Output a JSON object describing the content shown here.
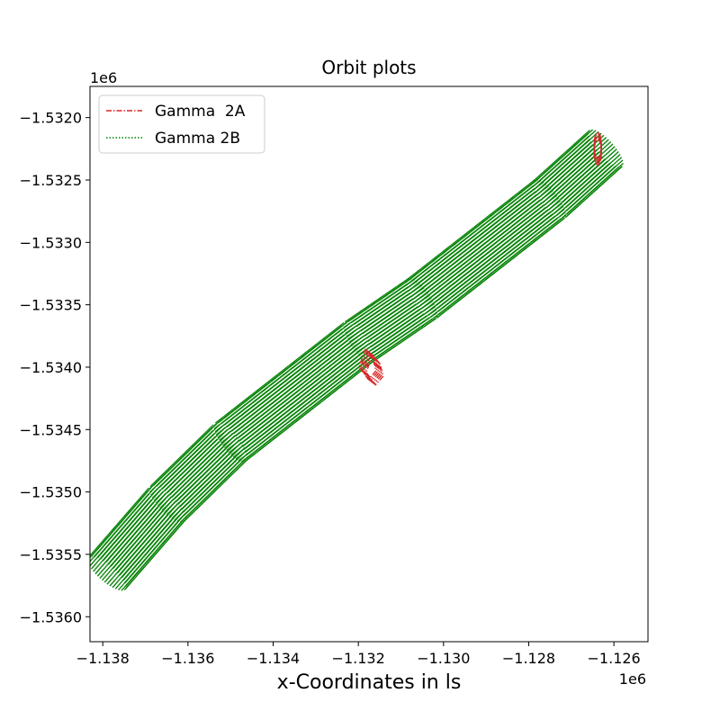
{
  "chart_data": {
    "type": "line",
    "title": "Orbit plots",
    "xlabel": "x-Coordinates in ls",
    "ylabel": "",
    "x_offset_label": "1e6",
    "y_offset_label": "1e6",
    "xlim": [
      -1.1383,
      -1.1252
    ],
    "ylim": [
      -1.5362,
      -1.53175
    ],
    "xticks": [
      -1.138,
      -1.136,
      -1.134,
      -1.132,
      -1.13,
      -1.128,
      -1.126
    ],
    "xtick_labels": [
      "−1.138",
      "−1.136",
      "−1.134",
      "−1.132",
      "−1.130",
      "−1.128",
      "−1.126"
    ],
    "yticks": [
      -1.532,
      -1.5325,
      -1.533,
      -1.5335,
      -1.534,
      -1.5345,
      -1.535,
      -1.5355,
      -1.536
    ],
    "ytick_labels": [
      "−1.5320",
      "−1.5325",
      "−1.5330",
      "−1.5335",
      "−1.5340",
      "−1.5345",
      "−1.5350",
      "−1.5355",
      "−1.5360"
    ],
    "grid": false,
    "legend_position": "upper-left",
    "series": [
      {
        "name": "Gamma  2A",
        "color": "#d62728",
        "linestyle": "dashdot",
        "x": [
          -1.13158,
          -1.13175,
          -1.1319,
          -1.13168,
          -1.1315
        ],
        "y": [
          -1.53395,
          -1.53388,
          -1.53402,
          -1.53412,
          -1.53405
        ]
      },
      {
        "name": "Gamma 2B",
        "color": "#008000",
        "linestyle": "dotted",
        "x": [
          -1.1379,
          -1.1365,
          -1.135,
          -1.1335,
          -1.132,
          -1.1305,
          -1.129,
          -1.1275,
          -1.1262
        ],
        "y": [
          -1.53565,
          -1.5351,
          -1.5346,
          -1.5342,
          -1.5338,
          -1.53345,
          -1.53305,
          -1.53265,
          -1.53225
        ]
      }
    ]
  }
}
